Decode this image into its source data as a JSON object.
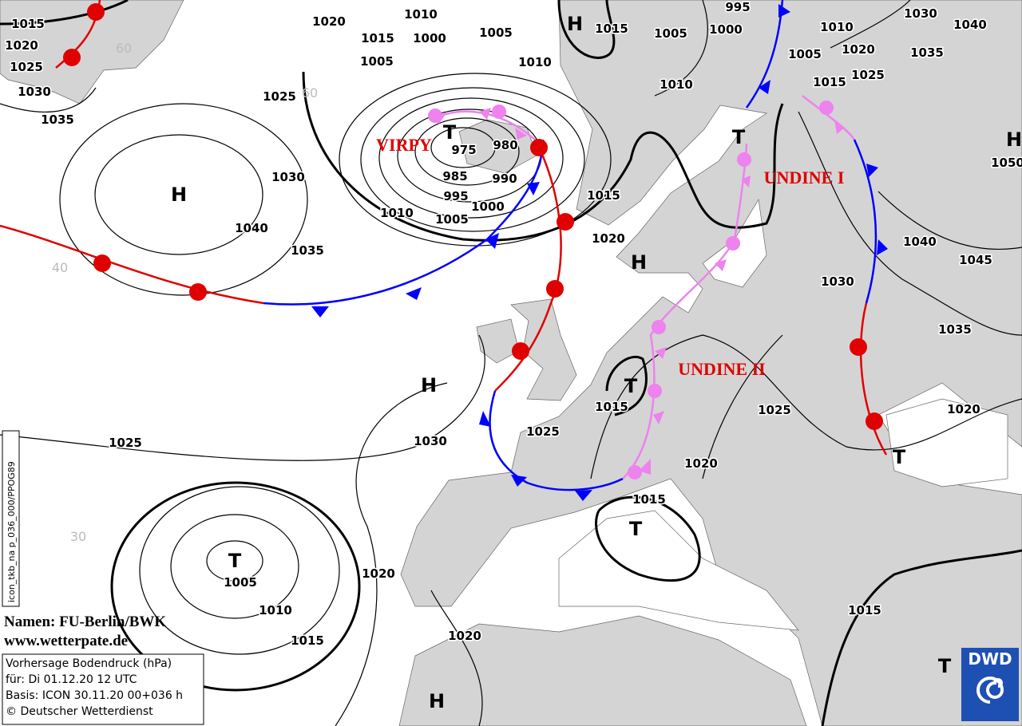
{
  "map": {
    "isobar_labels": [
      1015,
      1020,
      1025,
      1030,
      1035,
      1020,
      1010,
      1015,
      1000,
      1005,
      1005,
      1010,
      1015,
      1005,
      995,
      1000,
      1010,
      1005,
      1020,
      1025,
      1015,
      1030,
      1040,
      1035,
      1010,
      1025,
      975,
      980,
      985,
      990,
      995,
      1000,
      1005,
      1010,
      1015,
      1030,
      1040,
      1035,
      1020,
      1040,
      1045,
      1030,
      1035,
      1025,
      1020,
      1015,
      1025,
      1030,
      1025,
      1020,
      1015,
      1005,
      1010,
      1015,
      1020,
      1020,
      1015,
      1050
    ],
    "pressure_centers": [
      "H",
      "H",
      "T",
      "T",
      "H",
      "H",
      "T",
      "T",
      "T",
      "T",
      "T",
      "H",
      "H"
    ],
    "front_names": [
      "VIRPY",
      "UNDINE I",
      "UNDINE II"
    ],
    "grid_labels": [
      "60",
      "60",
      "40",
      "30"
    ],
    "credits": [
      "Namen: FU-Berlin/BWK",
      "www.wetterpate.de"
    ],
    "info_box": [
      "Vorhersage Bodendruck (hPa)",
      "für:  Di 01.12.20  12 UTC",
      "Basis: ICON  30.11.20 00+036 h",
      "© Deutscher Wetterdienst"
    ],
    "product_code": "icon_tkb_na p_036_000/PPOG89",
    "logo": "DWD"
  }
}
